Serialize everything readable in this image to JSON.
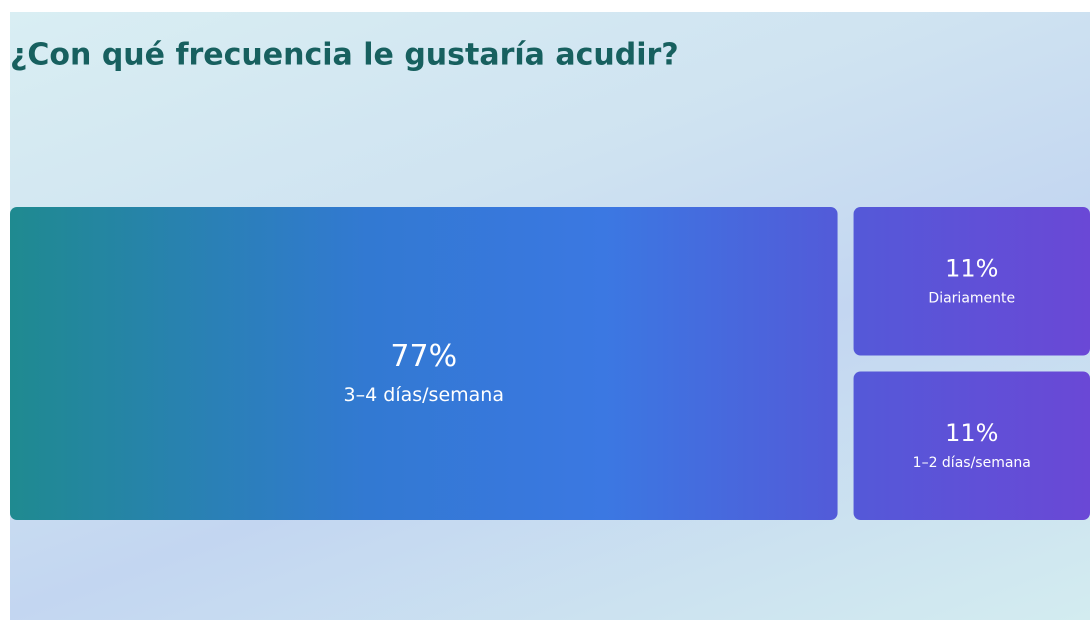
{
  "chart_data": {
    "type": "treemap",
    "title": "¿Con qué frecuencia le gustaría acudir?",
    "categories": [
      "3–4 días/semana",
      "Diariamente",
      "1–2 días/semana"
    ],
    "values": [
      77,
      11,
      11
    ],
    "value_labels": [
      "77%",
      "11%",
      "11%"
    ]
  }
}
